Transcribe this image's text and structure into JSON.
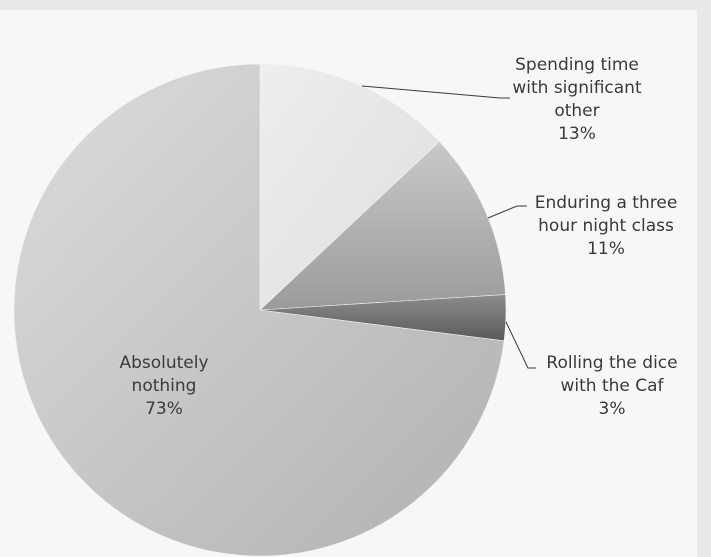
{
  "chart_data": {
    "type": "pie",
    "title": "",
    "start_angle_deg": 90,
    "direction": "clockwise",
    "slices": [
      {
        "label_lines": [
          "Spending time",
          "with significant",
          "other"
        ],
        "value_label": "13%",
        "value": 13
      },
      {
        "label_lines": [
          "Enduring a three",
          "hour night class"
        ],
        "value_label": "11%",
        "value": 11
      },
      {
        "label_lines": [
          "Rolling the dice",
          "with the Caf"
        ],
        "value_label": "3%",
        "value": 3
      },
      {
        "label_lines": [
          "Absolutely",
          "nothing"
        ],
        "value_label": "73%",
        "value": 73
      }
    ],
    "colors": {
      "background": "#f7f7f7",
      "border": "#e9e9e9",
      "text": "#3a3a3a"
    },
    "legend": "none"
  }
}
